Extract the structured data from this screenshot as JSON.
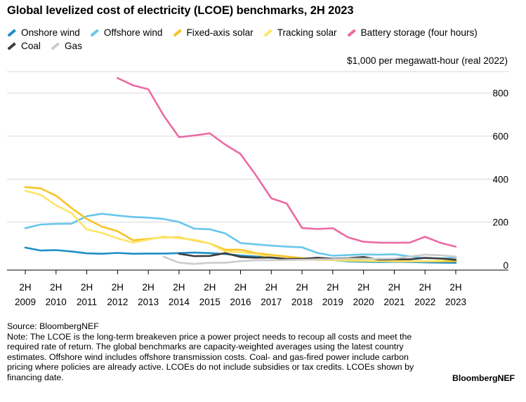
{
  "header": {
    "title": "Global levelized cost of electricity (LCOE) benchmarks, 2H 2023",
    "unit_label": "$1,000 per megawatt-hour (real 2022)"
  },
  "footer": {
    "source": "Source: BloombergNEF",
    "note": "Note: The LCOE is the long-term breakeven price a power project needs to recoup all costs and meet the required rate of return. The global benchmarks are capacity-weighted averages using the latest country estimates. Offshore wind includes offshore transmission costs. Coal- and gas-fired power include carbon pricing where policies are already active. LCOEs do not include subsidies or tax credits. LCOEs shown by financing date.",
    "brand": "BloombergNEF"
  },
  "chart_data": {
    "type": "line",
    "title": "Global levelized cost of electricity (LCOE) benchmarks, 2H 2023",
    "ylabel": "$1,000 per megawatt-hour (real 2022)",
    "ylim": [
      0,
      900
    ],
    "yticks": [
      0,
      200,
      400,
      600,
      800
    ],
    "grid": true,
    "legend_position": "top",
    "xlim": [
      2009.5,
      2023.5
    ],
    "x_tick_values": [
      2009.5,
      2010.5,
      2011.5,
      2012.5,
      2013.5,
      2014.5,
      2015.5,
      2016.5,
      2017.5,
      2018.5,
      2019.5,
      2020.5,
      2021.5,
      2022.5,
      2023.5
    ],
    "x_tick_labels": [
      [
        "2H",
        "2009"
      ],
      [
        "2H",
        "2010"
      ],
      [
        "2H",
        "2011"
      ],
      [
        "2H",
        "2012"
      ],
      [
        "2H",
        "2013"
      ],
      [
        "2H",
        "2014"
      ],
      [
        "2H",
        "2015"
      ],
      [
        "2H",
        "2016"
      ],
      [
        "2H",
        "2017"
      ],
      [
        "2H",
        "2018"
      ],
      [
        "2H",
        "2019"
      ],
      [
        "2H",
        "2020"
      ],
      [
        "2H",
        "2021"
      ],
      [
        "2H",
        "2022"
      ],
      [
        "2H",
        "2023"
      ]
    ],
    "series": [
      {
        "name": "Onshore wind",
        "color": "#1f8ec6",
        "x": [
          2009.5,
          2010,
          2010.5,
          2011,
          2011.5,
          2012,
          2012.5,
          2013,
          2013.5,
          2014,
          2014.5,
          2015,
          2015.5,
          2016,
          2016.5,
          2017,
          2017.5,
          2018,
          2018.5,
          2019,
          2019.5,
          2020,
          2020.5,
          2021,
          2021.5,
          2022,
          2022.5,
          2023,
          2023.5
        ],
        "values": [
          82,
          68,
          70,
          64,
          55,
          53,
          57,
          53,
          54,
          54,
          56,
          59,
          56,
          52,
          45,
          40,
          35,
          29,
          27,
          26,
          24,
          18,
          16,
          15,
          16,
          15,
          13,
          12,
          11
        ]
      },
      {
        "name": "Offshore wind",
        "color": "#67c6eb",
        "x": [
          2009.5,
          2010,
          2010.5,
          2011,
          2011.5,
          2012,
          2012.5,
          2013,
          2013.5,
          2014,
          2014.5,
          2015,
          2015.5,
          2016,
          2016.5,
          2017,
          2017.5,
          2018,
          2018.5,
          2019,
          2019.5,
          2020,
          2020.5,
          2021,
          2021.5,
          2022,
          2022.5,
          2023,
          2023.5
        ],
        "values": [
          172,
          189,
          192,
          193,
          228,
          239,
          231,
          224,
          221,
          215,
          201,
          170,
          167,
          148,
          103,
          97,
          91,
          86,
          83,
          57,
          44,
          47,
          50,
          49,
          51,
          41,
          33,
          31,
          36
        ]
      },
      {
        "name": "Fixed-axis solar",
        "color": "#f7c325",
        "x": [
          2009.5,
          2010,
          2010.5,
          2011,
          2011.5,
          2012,
          2012.5,
          2013,
          2013.5,
          2014,
          2014.5,
          2015,
          2015.5,
          2016,
          2016.5,
          2017,
          2017.5,
          2018,
          2018.5,
          2019,
          2019.5,
          2020,
          2020.5,
          2021,
          2021.5,
          2022,
          2022.5,
          2023,
          2023.5
        ],
        "values": [
          363,
          357,
          323,
          266,
          215,
          179,
          158,
          116,
          122,
          130,
          129,
          115,
          101,
          72,
          72,
          56,
          48,
          40,
          33,
          29,
          26,
          24,
          21,
          20,
          18,
          18,
          18,
          18,
          19
        ]
      },
      {
        "name": "Tracking solar",
        "color": "#fde467",
        "x": [
          2009.5,
          2010,
          2010.5,
          2011,
          2011.5,
          2012,
          2012.5,
          2013,
          2013.5,
          2014,
          2014.5,
          2015,
          2015.5,
          2016,
          2016.5,
          2017,
          2017.5,
          2018,
          2018.5,
          2019,
          2019.5,
          2020,
          2020.5,
          2021,
          2021.5,
          2022,
          2022.5,
          2023,
          2023.5
        ],
        "values": [
          346,
          327,
          278,
          243,
          166,
          150,
          125,
          105,
          119,
          133,
          126,
          118,
          101,
          64,
          60,
          52,
          37,
          30,
          27,
          24,
          24,
          21,
          20,
          19,
          19,
          18,
          18,
          21,
          28
        ]
      },
      {
        "name": "Battery storage (four hours)",
        "color": "#eb6aa4",
        "x": [
          2012.5,
          2013,
          2013.5,
          2014,
          2014.5,
          2015,
          2015.5,
          2016,
          2016.5,
          2017,
          2017.5,
          2018,
          2018.5,
          2019,
          2019.5,
          2020,
          2020.5,
          2021,
          2021.5,
          2022,
          2022.5,
          2023,
          2023.5
        ],
        "values": [
          870,
          836,
          818,
          696,
          595,
          603,
          613,
          561,
          517,
          418,
          311,
          287,
          173,
          168,
          172,
          129,
          109,
          105,
          104,
          105,
          132,
          104,
          86
        ]
      },
      {
        "name": "Coal",
        "color": "#3d3d3d",
        "x": [
          2014.5,
          2015,
          2015.5,
          2016,
          2016.5,
          2017,
          2017.5,
          2018,
          2018.5,
          2019,
          2019.5,
          2020,
          2020.5,
          2021,
          2021.5,
          2022,
          2022.5,
          2023,
          2023.5
        ],
        "values": [
          53,
          42,
          43,
          56,
          38,
          35,
          36,
          29,
          29,
          35,
          30,
          33,
          38,
          26,
          27,
          27,
          34,
          31,
          25
        ]
      },
      {
        "name": "Gas",
        "color": "#cccccc",
        "x": [
          2014,
          2014.5,
          2015,
          2015.5,
          2016,
          2016.5,
          2017,
          2017.5,
          2018,
          2018.5,
          2019,
          2019.5,
          2020,
          2020.5,
          2021,
          2021.5,
          2022,
          2022.5,
          2023,
          2023.5
        ],
        "values": [
          39,
          12,
          6,
          11,
          11,
          19,
          23,
          23,
          24,
          25,
          27,
          28,
          31,
          30,
          30,
          31,
          40,
          49,
          46,
          40
        ]
      }
    ]
  }
}
